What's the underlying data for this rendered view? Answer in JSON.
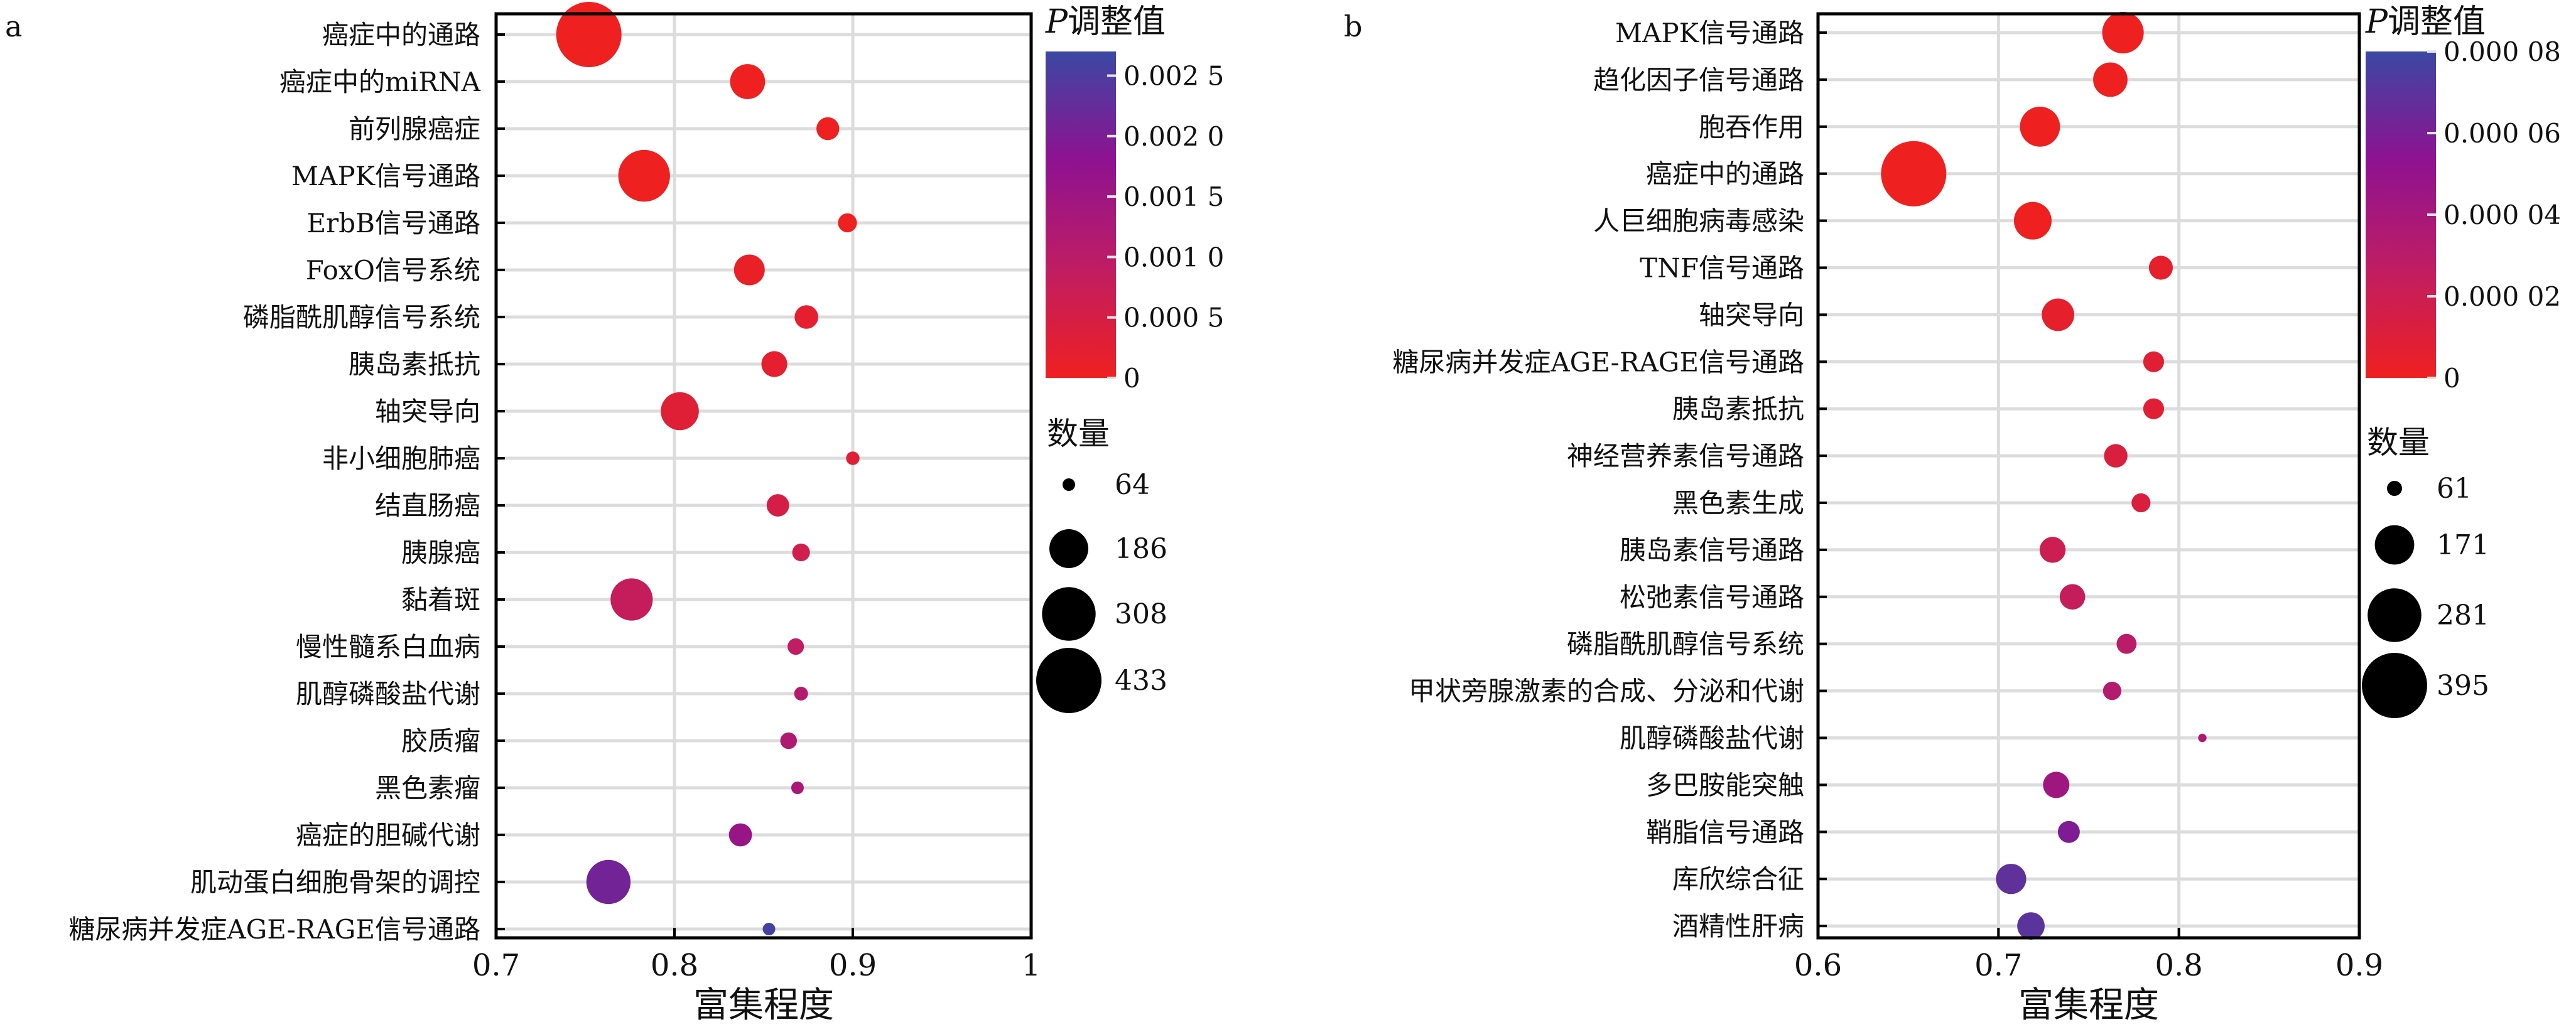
{
  "chart_data": [
    {
      "panel_label": "a",
      "type": "scatter",
      "xlabel": "富集程度",
      "xlim": [
        0.7,
        1.0
      ],
      "xticks": [
        {
          "value": 0.7,
          "label": "0.7"
        },
        {
          "value": 0.8,
          "label": "0.8"
        },
        {
          "value": 0.9,
          "label": "0.9"
        },
        {
          "value": 1.0,
          "label": "1"
        }
      ],
      "colorbar": {
        "title_italic": "P",
        "title_rest": "调整值",
        "min": 0,
        "max": 0.0027,
        "ticks": [
          {
            "value": 0,
            "label": "0"
          },
          {
            "value": 0.0005,
            "label": "0.000 5"
          },
          {
            "value": 0.001,
            "label": "0.001 0"
          },
          {
            "value": 0.0015,
            "label": "0.001 5"
          },
          {
            "value": 0.002,
            "label": "0.002 0"
          },
          {
            "value": 0.0025,
            "label": "0.002 5"
          }
        ],
        "colors": [
          "#ef2020",
          "#c01d63",
          "#8e1291",
          "#3b48a3"
        ]
      },
      "size_legend": {
        "title": "数量",
        "entries": [
          {
            "value": 64,
            "label": "64"
          },
          {
            "value": 186,
            "label": "186"
          },
          {
            "value": 308,
            "label": "308"
          },
          {
            "value": 433,
            "label": "433"
          }
        ]
      },
      "points": [
        {
          "label": "癌症中的通路",
          "x": 0.752,
          "count": 433,
          "p": 0.0
        },
        {
          "label": "癌症中的miRNA",
          "x": 0.841,
          "count": 160,
          "p": 0.0
        },
        {
          "label": "前列腺癌症",
          "x": 0.886,
          "count": 97,
          "p": 0.0
        },
        {
          "label": "MAPK信号通路",
          "x": 0.783,
          "count": 290,
          "p": 0.0
        },
        {
          "label": "ErbB信号通路",
          "x": 0.897,
          "count": 82,
          "p": 0.0
        },
        {
          "label": "FoxO信号系统",
          "x": 0.842,
          "count": 135,
          "p": 0.0001
        },
        {
          "label": "磷脂酰肌醇信号系统",
          "x": 0.874,
          "count": 100,
          "p": 0.0002
        },
        {
          "label": "胰岛素抵抗",
          "x": 0.856,
          "count": 110,
          "p": 0.0002
        },
        {
          "label": "轴突导向",
          "x": 0.803,
          "count": 180,
          "p": 0.0003
        },
        {
          "label": "非小细胞肺癌",
          "x": 0.9,
          "count": 66,
          "p": 0.0003
        },
        {
          "label": "结直肠癌",
          "x": 0.858,
          "count": 95,
          "p": 0.0005
        },
        {
          "label": "胰腺癌",
          "x": 0.871,
          "count": 78,
          "p": 0.0006
        },
        {
          "label": "黏着斑",
          "x": 0.776,
          "count": 210,
          "p": 0.0008
        },
        {
          "label": "慢性髓系白血病",
          "x": 0.868,
          "count": 74,
          "p": 0.0009
        },
        {
          "label": "肌醇磷酸盐代谢",
          "x": 0.871,
          "count": 67,
          "p": 0.0011
        },
        {
          "label": "胶质瘤",
          "x": 0.864,
          "count": 75,
          "p": 0.0012
        },
        {
          "label": "黑色素瘤",
          "x": 0.869,
          "count": 64,
          "p": 0.0013
        },
        {
          "label": "癌症的胆碱代谢",
          "x": 0.837,
          "count": 98,
          "p": 0.0016
        },
        {
          "label": "肌动蛋白细胞骨架的调控",
          "x": 0.763,
          "count": 225,
          "p": 0.0021
        },
        {
          "label": "糖尿病并发症AGE-RAGE信号通路",
          "x": 0.853,
          "count": 64,
          "p": 0.0026
        }
      ]
    },
    {
      "panel_label": "b",
      "type": "scatter",
      "xlabel": "富集程度",
      "xlim": [
        0.6,
        0.9
      ],
      "xticks": [
        {
          "value": 0.6,
          "label": "0.6"
        },
        {
          "value": 0.7,
          "label": "0.7"
        },
        {
          "value": 0.8,
          "label": "0.8"
        },
        {
          "value": 0.9,
          "label": "0.9"
        }
      ],
      "colorbar": {
        "title_italic": "P",
        "title_rest": "调整值",
        "min": 0,
        "max": 8e-05,
        "ticks": [
          {
            "value": 0,
            "label": "0"
          },
          {
            "value": 2e-05,
            "label": "0.000 02"
          },
          {
            "value": 4e-05,
            "label": "0.000 04"
          },
          {
            "value": 6e-05,
            "label": "0.000 06"
          },
          {
            "value": 8e-05,
            "label": "0.000 08"
          }
        ],
        "colors": [
          "#ef2020",
          "#c01d63",
          "#8e1291",
          "#3b48a3"
        ]
      },
      "size_legend": {
        "title": "数量",
        "entries": [
          {
            "value": 61,
            "label": "61"
          },
          {
            "value": 171,
            "label": "171"
          },
          {
            "value": 281,
            "label": "281"
          },
          {
            "value": 395,
            "label": "395"
          }
        ]
      },
      "points": [
        {
          "label": "MAPK信号通路",
          "x": 0.769,
          "count": 185,
          "p": 0.0
        },
        {
          "label": "趋化因子信号通路",
          "x": 0.762,
          "count": 140,
          "p": 0.0
        },
        {
          "label": "胞吞作用",
          "x": 0.723,
          "count": 175,
          "p": 0.0
        },
        {
          "label": "癌症中的通路",
          "x": 0.653,
          "count": 395,
          "p": 0.0
        },
        {
          "label": "人巨细胞病毒感染",
          "x": 0.719,
          "count": 160,
          "p": 0.0
        },
        {
          "label": "TNF信号通路",
          "x": 0.79,
          "count": 90,
          "p": 5e-06
        },
        {
          "label": "轴突导向",
          "x": 0.733,
          "count": 130,
          "p": 5e-06
        },
        {
          "label": "糖尿病并发症AGE-RAGE信号通路",
          "x": 0.786,
          "count": 78,
          "p": 8e-06
        },
        {
          "label": "胰岛素抵抗",
          "x": 0.786,
          "count": 78,
          "p": 8e-06
        },
        {
          "label": "神经营养素信号通路",
          "x": 0.765,
          "count": 88,
          "p": 1.2e-05
        },
        {
          "label": "黑色素生成",
          "x": 0.779,
          "count": 72,
          "p": 1.2e-05
        },
        {
          "label": "胰岛素信号通路",
          "x": 0.73,
          "count": 98,
          "p": 2e-05
        },
        {
          "label": "松弛素信号通路",
          "x": 0.741,
          "count": 96,
          "p": 2.4e-05
        },
        {
          "label": "磷脂酰肌醇信号系统",
          "x": 0.771,
          "count": 75,
          "p": 3e-05
        },
        {
          "label": "甲状旁腺激素的合成、分泌和代谢",
          "x": 0.763,
          "count": 70,
          "p": 3.3e-05
        },
        {
          "label": "肌醇磷酸盐代谢",
          "x": 0.813,
          "count": 48,
          "p": 3.6e-05
        },
        {
          "label": "多巴胺能突触",
          "x": 0.732,
          "count": 100,
          "p": 4.4e-05
        },
        {
          "label": "鞘脂信号通路",
          "x": 0.739,
          "count": 82,
          "p": 5.8e-05
        },
        {
          "label": "库欣综合征",
          "x": 0.707,
          "count": 118,
          "p": 6.8e-05
        },
        {
          "label": "酒精性肝病",
          "x": 0.718,
          "count": 105,
          "p": 7e-05
        }
      ]
    }
  ]
}
